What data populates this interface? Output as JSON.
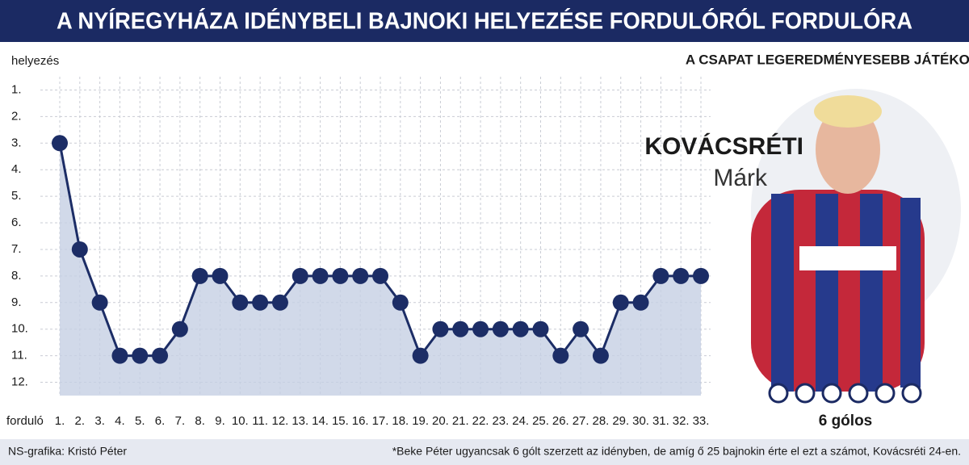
{
  "chart_data": {
    "type": "line",
    "title": "A NYÍREGYHÁZA IDÉNYBELI BAJNOKI HELYEZÉSE FORDULÓRÓL FORDULÓRA",
    "y_label": "helyezés",
    "x_label": "forduló",
    "categories": [
      "1.",
      "2.",
      "3.",
      "4.",
      "5.",
      "6.",
      "7.",
      "8.",
      "9.",
      "10.",
      "11.",
      "12.",
      "13.",
      "14.",
      "15.",
      "16.",
      "17.",
      "18.",
      "19.",
      "20.",
      "21.",
      "22.",
      "23.",
      "24.",
      "25.",
      "26.",
      "27.",
      "28.",
      "29.",
      "30.",
      "31.",
      "32.",
      "33."
    ],
    "values": [
      3,
      7,
      9,
      11,
      11,
      11,
      10,
      8,
      8,
      9,
      9,
      9,
      8,
      8,
      8,
      8,
      8,
      9,
      11,
      10,
      10,
      10,
      10,
      10,
      10,
      11,
      10,
      11,
      9,
      9,
      8,
      8,
      8
    ],
    "color": "#1c2d66",
    "area_color": "#c5cfe4",
    "ylim": [
      0.5,
      12.5
    ],
    "y_inverted": true,
    "yticks": [
      {
        "value": 1,
        "label": "1."
      },
      {
        "value": 2,
        "label": "2."
      },
      {
        "value": 3,
        "label": "3."
      },
      {
        "value": 4,
        "label": "4."
      },
      {
        "value": 5,
        "label": "5."
      },
      {
        "value": 6,
        "label": "6."
      },
      {
        "value": 7,
        "label": "7."
      },
      {
        "value": 8,
        "label": "8."
      },
      {
        "value": 9,
        "label": "9."
      },
      {
        "value": 10,
        "label": "10."
      },
      {
        "value": 11,
        "label": "11."
      },
      {
        "value": 12,
        "label": "12."
      }
    ],
    "grid": true
  },
  "player": {
    "heading": "A CSAPAT LEGEREDMÉNYESEBB JÁTÉKOSA*",
    "surname": "KOVÁCSRÉTI",
    "firstname": "Márk",
    "goals": "6 gólos"
  },
  "credit": "NS-grafika: Kristó Péter",
  "footnote": "*Beke Péter ugyancsak 6 gólt szerzett az idényben, de amíg ő 25 bajnokin érte el ezt a számot, Kovácsréti 24-en."
}
